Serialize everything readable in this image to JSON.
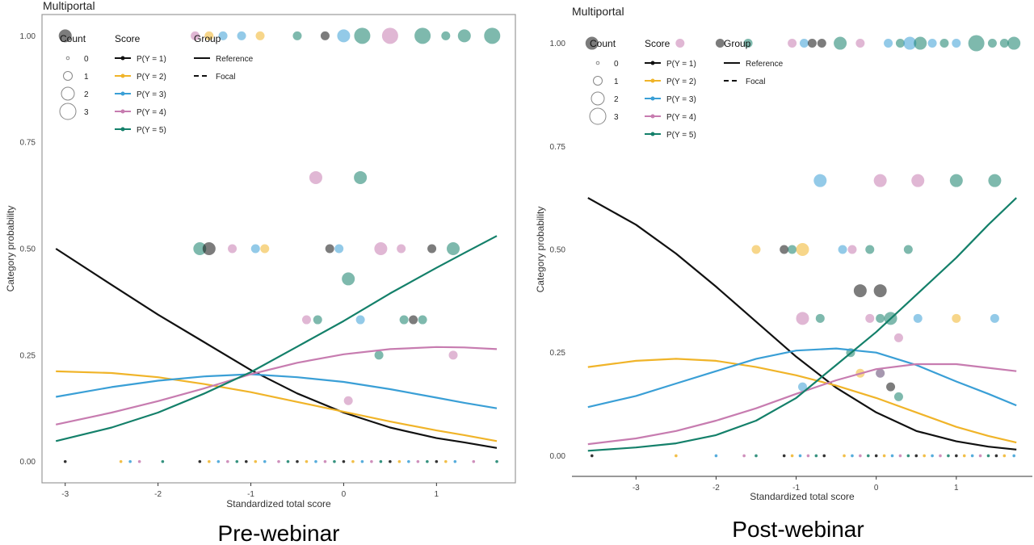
{
  "figure": {
    "captions": [
      "Pre-webinar",
      "Post-webinar"
    ],
    "legend": {
      "count_title": "Count",
      "count_labels": [
        "0",
        "1",
        "2",
        "3"
      ],
      "score_title": "Score",
      "score_labels": [
        "P(Y = 1)",
        "P(Y = 2)",
        "P(Y = 3)",
        "P(Y = 4)",
        "P(Y = 5)"
      ],
      "group_title": "Group",
      "group_labels": [
        "Reference",
        "Focal"
      ]
    },
    "colors": {
      "P(Y = 1)": "#111111",
      "P(Y = 2)": "#f0b429",
      "P(Y = 3)": "#3a9fd6",
      "P(Y = 4)": "#c77cb0",
      "P(Y = 5)": "#14806a"
    }
  },
  "chart_data": [
    {
      "type": "line",
      "title": "Multiportal",
      "xlabel": "Standardized total score",
      "ylabel": "Category probability",
      "xlim": [
        -3.25,
        1.85
      ],
      "ylim": [
        -0.05,
        1.05
      ],
      "xticks": [
        "-3",
        "-2",
        "-1",
        "0",
        "1"
      ],
      "yticks": [
        "0.00",
        "0.25",
        "0.50",
        "0.75",
        "1.00"
      ],
      "series": [
        {
          "name": "P(Y = 1)",
          "x": [
            -3.1,
            -2.5,
            -2.0,
            -1.5,
            -1.0,
            -0.5,
            0.0,
            0.5,
            1.0,
            1.3,
            1.65
          ],
          "y": [
            0.5,
            0.415,
            0.345,
            0.28,
            0.215,
            0.16,
            0.115,
            0.08,
            0.055,
            0.045,
            0.032
          ]
        },
        {
          "name": "P(Y = 2)",
          "x": [
            -3.1,
            -2.5,
            -2.0,
            -1.5,
            -1.0,
            -0.5,
            0.0,
            0.5,
            1.0,
            1.3,
            1.65
          ],
          "y": [
            0.212,
            0.208,
            0.198,
            0.182,
            0.163,
            0.14,
            0.117,
            0.094,
            0.073,
            0.062,
            0.048
          ]
        },
        {
          "name": "P(Y = 3)",
          "x": [
            -3.1,
            -2.5,
            -2.0,
            -1.5,
            -1.0,
            -0.5,
            0.0,
            0.5,
            1.0,
            1.3,
            1.65
          ],
          "y": [
            0.152,
            0.175,
            0.19,
            0.2,
            0.205,
            0.198,
            0.187,
            0.17,
            0.15,
            0.138,
            0.125
          ]
        },
        {
          "name": "P(Y = 4)",
          "x": [
            -3.1,
            -2.5,
            -2.0,
            -1.5,
            -1.0,
            -0.5,
            0.0,
            0.5,
            1.0,
            1.3,
            1.65
          ],
          "y": [
            0.087,
            0.115,
            0.142,
            0.172,
            0.205,
            0.232,
            0.252,
            0.264,
            0.269,
            0.268,
            0.264
          ]
        },
        {
          "name": "P(Y = 5)",
          "x": [
            -3.1,
            -2.5,
            -2.0,
            -1.5,
            -1.0,
            -0.5,
            0.0,
            0.5,
            1.0,
            1.3,
            1.65
          ],
          "y": [
            0.048,
            0.08,
            0.115,
            0.16,
            0.21,
            0.27,
            0.33,
            0.395,
            0.455,
            0.49,
            0.53
          ]
        }
      ],
      "points": [
        {
          "x": -3.0,
          "y": 1.0,
          "score": 1,
          "count": 2
        },
        {
          "x": -1.6,
          "y": 1.0,
          "score": 4,
          "count": 1
        },
        {
          "x": -1.45,
          "y": 1.0,
          "score": 2,
          "count": 1
        },
        {
          "x": -1.3,
          "y": 1.0,
          "score": 3,
          "count": 1
        },
        {
          "x": -1.1,
          "y": 1.0,
          "score": 3,
          "count": 1
        },
        {
          "x": -0.9,
          "y": 1.0,
          "score": 2,
          "count": 1
        },
        {
          "x": -0.5,
          "y": 1.0,
          "score": 5,
          "count": 1
        },
        {
          "x": -0.2,
          "y": 1.0,
          "score": 1,
          "count": 1
        },
        {
          "x": 0.0,
          "y": 1.0,
          "score": 3,
          "count": 2
        },
        {
          "x": 0.2,
          "y": 1.0,
          "score": 5,
          "count": 3
        },
        {
          "x": 0.5,
          "y": 1.0,
          "score": 4,
          "count": 3
        },
        {
          "x": 0.85,
          "y": 1.0,
          "score": 5,
          "count": 3
        },
        {
          "x": 1.1,
          "y": 1.0,
          "score": 5,
          "count": 1
        },
        {
          "x": 1.3,
          "y": 1.0,
          "score": 5,
          "count": 2
        },
        {
          "x": 1.6,
          "y": 1.0,
          "score": 5,
          "count": 3
        },
        {
          "x": -0.3,
          "y": 0.667,
          "score": 4,
          "count": 2
        },
        {
          "x": 0.18,
          "y": 0.667,
          "score": 5,
          "count": 2
        },
        {
          "x": -1.55,
          "y": 0.5,
          "score": 5,
          "count": 2
        },
        {
          "x": -1.45,
          "y": 0.5,
          "score": 1,
          "count": 2
        },
        {
          "x": -1.2,
          "y": 0.5,
          "score": 4,
          "count": 1
        },
        {
          "x": -0.95,
          "y": 0.5,
          "score": 3,
          "count": 1
        },
        {
          "x": -0.85,
          "y": 0.5,
          "score": 2,
          "count": 1
        },
        {
          "x": -0.15,
          "y": 0.5,
          "score": 1,
          "count": 1
        },
        {
          "x": -0.05,
          "y": 0.5,
          "score": 3,
          "count": 1
        },
        {
          "x": 0.4,
          "y": 0.5,
          "score": 4,
          "count": 2
        },
        {
          "x": 0.62,
          "y": 0.5,
          "score": 4,
          "count": 1
        },
        {
          "x": 0.95,
          "y": 0.5,
          "score": 1,
          "count": 1
        },
        {
          "x": 1.18,
          "y": 0.5,
          "score": 5,
          "count": 2
        },
        {
          "x": 0.05,
          "y": 0.429,
          "score": 5,
          "count": 2
        },
        {
          "x": -0.4,
          "y": 0.333,
          "score": 4,
          "count": 1
        },
        {
          "x": -0.28,
          "y": 0.333,
          "score": 5,
          "count": 1
        },
        {
          "x": 0.18,
          "y": 0.333,
          "score": 3,
          "count": 1
        },
        {
          "x": 0.65,
          "y": 0.333,
          "score": 5,
          "count": 1
        },
        {
          "x": 0.75,
          "y": 0.333,
          "score": 1,
          "count": 1
        },
        {
          "x": 0.85,
          "y": 0.333,
          "score": 5,
          "count": 1
        },
        {
          "x": 0.38,
          "y": 0.25,
          "score": 5,
          "count": 1
        },
        {
          "x": 1.18,
          "y": 0.25,
          "score": 4,
          "count": 1
        },
        {
          "x": 0.05,
          "y": 0.143,
          "score": 4,
          "count": 1
        }
      ],
      "rugs_x": [
        -3.0,
        -2.4,
        -2.3,
        -2.2,
        -1.95,
        -1.55,
        -1.45,
        -1.35,
        -1.25,
        -1.15,
        -1.05,
        -0.95,
        -0.85,
        -0.7,
        -0.6,
        -0.5,
        -0.4,
        -0.3,
        -0.2,
        -0.1,
        0.0,
        0.1,
        0.2,
        0.3,
        0.4,
        0.5,
        0.6,
        0.7,
        0.8,
        0.9,
        1.0,
        1.1,
        1.2,
        1.4,
        1.65
      ]
    },
    {
      "type": "line",
      "title": "Multiportal",
      "xlabel": "Standardized total score",
      "ylabel": "Category probability",
      "xlim": [
        -3.8,
        1.95
      ],
      "ylim": [
        -0.05,
        1.05
      ],
      "xticks": [
        "-3",
        "-2",
        "-1",
        "0",
        "1"
      ],
      "yticks": [
        "0.00",
        "0.25",
        "0.50",
        "0.75",
        "1.00"
      ],
      "series": [
        {
          "name": "P(Y = 1)",
          "x": [
            -3.6,
            -3.0,
            -2.5,
            -2.0,
            -1.5,
            -1.0,
            -0.5,
            0.0,
            0.5,
            1.0,
            1.4,
            1.75
          ],
          "y": [
            0.625,
            0.56,
            0.49,
            0.41,
            0.325,
            0.24,
            0.165,
            0.105,
            0.06,
            0.035,
            0.022,
            0.015
          ]
        },
        {
          "name": "P(Y = 2)",
          "x": [
            -3.6,
            -3.0,
            -2.5,
            -2.0,
            -1.5,
            -1.0,
            -0.5,
            0.0,
            0.5,
            1.0,
            1.4,
            1.75
          ],
          "y": [
            0.215,
            0.23,
            0.235,
            0.23,
            0.215,
            0.195,
            0.17,
            0.14,
            0.105,
            0.07,
            0.048,
            0.032
          ]
        },
        {
          "name": "P(Y = 3)",
          "x": [
            -3.6,
            -3.0,
            -2.5,
            -2.0,
            -1.5,
            -1.0,
            -0.5,
            0.0,
            0.5,
            1.0,
            1.4,
            1.75
          ],
          "y": [
            0.118,
            0.145,
            0.175,
            0.205,
            0.235,
            0.255,
            0.26,
            0.25,
            0.22,
            0.18,
            0.15,
            0.122
          ]
        },
        {
          "name": "P(Y = 4)",
          "x": [
            -3.6,
            -3.0,
            -2.5,
            -2.0,
            -1.5,
            -1.0,
            -0.5,
            0.0,
            0.5,
            1.0,
            1.4,
            1.75
          ],
          "y": [
            0.028,
            0.042,
            0.06,
            0.085,
            0.115,
            0.15,
            0.183,
            0.21,
            0.222,
            0.222,
            0.213,
            0.205
          ]
        },
        {
          "name": "P(Y = 5)",
          "x": [
            -3.6,
            -3.0,
            -2.5,
            -2.0,
            -1.5,
            -1.0,
            -0.5,
            0.0,
            0.5,
            1.0,
            1.4,
            1.75
          ],
          "y": [
            0.012,
            0.02,
            0.03,
            0.05,
            0.085,
            0.14,
            0.22,
            0.3,
            0.39,
            0.48,
            0.56,
            0.625
          ]
        }
      ],
      "points": [
        {
          "x": -3.55,
          "y": 1.0,
          "score": 1,
          "count": 2
        },
        {
          "x": -2.45,
          "y": 1.0,
          "score": 4,
          "count": 1
        },
        {
          "x": -1.95,
          "y": 1.0,
          "score": 1,
          "count": 1
        },
        {
          "x": -1.6,
          "y": 1.0,
          "score": 5,
          "count": 1
        },
        {
          "x": -1.05,
          "y": 1.0,
          "score": 4,
          "count": 1
        },
        {
          "x": -0.9,
          "y": 1.0,
          "score": 3,
          "count": 1
        },
        {
          "x": -0.8,
          "y": 1.0,
          "score": 1,
          "count": 1
        },
        {
          "x": -0.68,
          "y": 1.0,
          "score": 1,
          "count": 1
        },
        {
          "x": -0.45,
          "y": 1.0,
          "score": 5,
          "count": 2
        },
        {
          "x": -0.2,
          "y": 1.0,
          "score": 4,
          "count": 1
        },
        {
          "x": 0.15,
          "y": 1.0,
          "score": 3,
          "count": 1
        },
        {
          "x": 0.3,
          "y": 1.0,
          "score": 5,
          "count": 1
        },
        {
          "x": 0.42,
          "y": 1.0,
          "score": 3,
          "count": 2
        },
        {
          "x": 0.55,
          "y": 1.0,
          "score": 5,
          "count": 2
        },
        {
          "x": 0.7,
          "y": 1.0,
          "score": 3,
          "count": 1
        },
        {
          "x": 0.85,
          "y": 1.0,
          "score": 5,
          "count": 1
        },
        {
          "x": 1.0,
          "y": 1.0,
          "score": 3,
          "count": 1
        },
        {
          "x": 1.25,
          "y": 1.0,
          "score": 5,
          "count": 3
        },
        {
          "x": 1.45,
          "y": 1.0,
          "score": 5,
          "count": 1
        },
        {
          "x": 1.6,
          "y": 1.0,
          "score": 5,
          "count": 1
        },
        {
          "x": 1.72,
          "y": 1.0,
          "score": 5,
          "count": 2
        },
        {
          "x": -0.7,
          "y": 0.667,
          "score": 3,
          "count": 2
        },
        {
          "x": 0.05,
          "y": 0.667,
          "score": 4,
          "count": 2
        },
        {
          "x": 0.52,
          "y": 0.667,
          "score": 4,
          "count": 2
        },
        {
          "x": 1.0,
          "y": 0.667,
          "score": 5,
          "count": 2
        },
        {
          "x": 1.48,
          "y": 0.667,
          "score": 5,
          "count": 2
        },
        {
          "x": -1.5,
          "y": 0.5,
          "score": 2,
          "count": 1
        },
        {
          "x": -1.15,
          "y": 0.5,
          "score": 1,
          "count": 1
        },
        {
          "x": -1.05,
          "y": 0.5,
          "score": 5,
          "count": 1
        },
        {
          "x": -0.92,
          "y": 0.5,
          "score": 2,
          "count": 2
        },
        {
          "x": -0.42,
          "y": 0.5,
          "score": 3,
          "count": 1
        },
        {
          "x": -0.3,
          "y": 0.5,
          "score": 4,
          "count": 1
        },
        {
          "x": -0.08,
          "y": 0.5,
          "score": 5,
          "count": 1
        },
        {
          "x": 0.4,
          "y": 0.5,
          "score": 5,
          "count": 1
        },
        {
          "x": -0.2,
          "y": 0.4,
          "score": 1,
          "count": 2
        },
        {
          "x": 0.05,
          "y": 0.4,
          "score": 1,
          "count": 2
        },
        {
          "x": -0.92,
          "y": 0.333,
          "score": 4,
          "count": 2
        },
        {
          "x": -0.7,
          "y": 0.333,
          "score": 5,
          "count": 1
        },
        {
          "x": -0.08,
          "y": 0.333,
          "score": 4,
          "count": 1
        },
        {
          "x": 0.05,
          "y": 0.333,
          "score": 5,
          "count": 1
        },
        {
          "x": 0.18,
          "y": 0.333,
          "score": 5,
          "count": 2
        },
        {
          "x": 0.52,
          "y": 0.333,
          "score": 3,
          "count": 1
        },
        {
          "x": 1.0,
          "y": 0.333,
          "score": 2,
          "count": 1
        },
        {
          "x": 1.48,
          "y": 0.333,
          "score": 3,
          "count": 1
        },
        {
          "x": 0.28,
          "y": 0.286,
          "score": 4,
          "count": 1
        },
        {
          "x": -0.32,
          "y": 0.25,
          "score": 5,
          "count": 1
        },
        {
          "x": -0.2,
          "y": 0.2,
          "score": 2,
          "count": 1
        },
        {
          "x": 0.05,
          "y": 0.2,
          "score": 5,
          "count": 1
        },
        {
          "x": 0.05,
          "y": 0.2,
          "score": 4,
          "count": 1
        },
        {
          "x": 0.18,
          "y": 0.167,
          "score": 1,
          "count": 1
        },
        {
          "x": -0.92,
          "y": 0.167,
          "score": 3,
          "count": 1
        },
        {
          "x": 0.28,
          "y": 0.143,
          "score": 5,
          "count": 1
        }
      ],
      "rugs_x": [
        -3.55,
        -2.5,
        -2.0,
        -1.65,
        -1.5,
        -1.15,
        -1.05,
        -0.95,
        -0.85,
        -0.75,
        -0.65,
        -0.4,
        -0.3,
        -0.2,
        -0.1,
        0.0,
        0.1,
        0.2,
        0.3,
        0.4,
        0.5,
        0.6,
        0.7,
        0.8,
        0.9,
        1.0,
        1.1,
        1.2,
        1.3,
        1.4,
        1.5,
        1.6,
        1.72
      ]
    }
  ]
}
